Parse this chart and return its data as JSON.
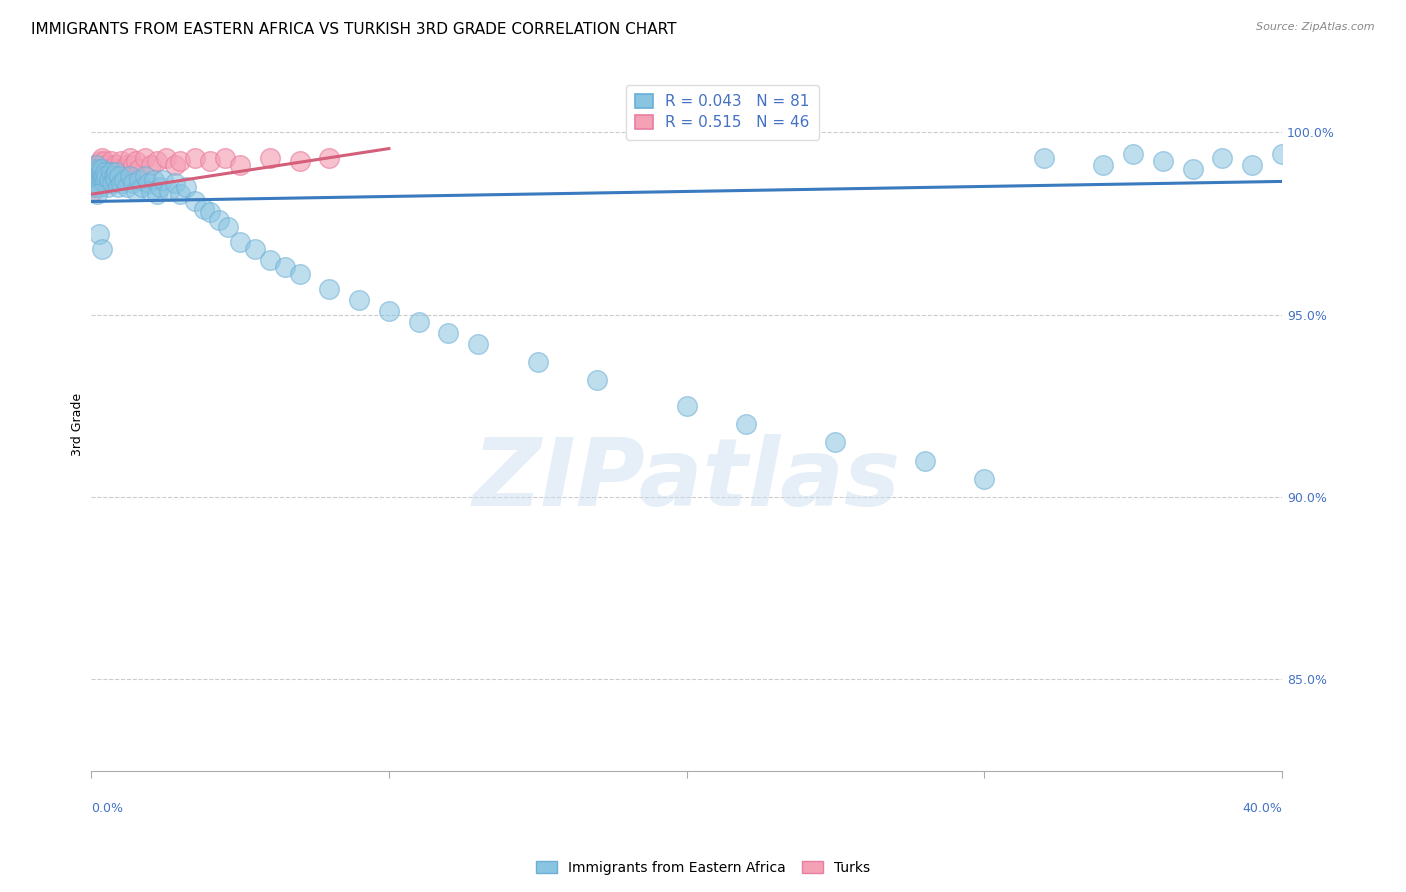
{
  "title": "IMMIGRANTS FROM EASTERN AFRICA VS TURKISH 3RD GRADE CORRELATION CHART",
  "source": "Source: ZipAtlas.com",
  "ylabel": "3rd Grade",
  "yticks": [
    100.0,
    95.0,
    90.0,
    85.0
  ],
  "ylim": [
    82.5,
    101.5
  ],
  "xlim": [
    0.0,
    40.0
  ],
  "legend_blue_r": "R = 0.043",
  "legend_blue_n": "N = 81",
  "legend_pink_r": "R = 0.515",
  "legend_pink_n": "N = 46",
  "blue_color": "#89c4e1",
  "pink_color": "#f4a0b5",
  "blue_scatter_edge": "#6baed6",
  "pink_scatter_edge": "#e87fa0",
  "blue_line_color": "#3a7abf",
  "pink_line_color": "#d45f7a",
  "watermark": "ZIPatlas",
  "blue_line_x": [
    0.0,
    40.0
  ],
  "blue_line_y": [
    98.1,
    98.65
  ],
  "pink_line_x": [
    0.0,
    10.0
  ],
  "pink_line_y": [
    98.3,
    99.55
  ],
  "blue_scatter_x": [
    0.05,
    0.08,
    0.1,
    0.12,
    0.15,
    0.17,
    0.2,
    0.22,
    0.25,
    0.28,
    0.3,
    0.33,
    0.35,
    0.38,
    0.4,
    0.43,
    0.45,
    0.48,
    0.5,
    0.55,
    0.6,
    0.65,
    0.7,
    0.75,
    0.8,
    0.85,
    0.9,
    0.95,
    1.0,
    1.1,
    1.2,
    1.3,
    1.4,
    1.5,
    1.6,
    1.7,
    1.8,
    1.9,
    2.0,
    2.1,
    2.2,
    2.3,
    2.4,
    2.6,
    2.8,
    3.0,
    3.2,
    3.5,
    3.8,
    4.0,
    4.3,
    4.6,
    5.0,
    5.5,
    6.0,
    6.5,
    7.0,
    8.0,
    9.0,
    10.0,
    11.0,
    12.0,
    13.0,
    15.0,
    17.0,
    20.0,
    22.0,
    25.0,
    28.0,
    30.0,
    32.0,
    34.0,
    35.0,
    36.0,
    37.0,
    38.0,
    39.0,
    40.0,
    0.18,
    0.27,
    0.38
  ],
  "blue_scatter_y": [
    98.8,
    99.0,
    98.5,
    98.7,
    98.9,
    99.1,
    98.6,
    98.8,
    99.0,
    98.7,
    98.5,
    98.9,
    98.7,
    99.0,
    98.8,
    98.6,
    98.9,
    98.7,
    98.8,
    98.5,
    98.7,
    98.9,
    98.6,
    98.8,
    98.7,
    98.9,
    98.5,
    98.8,
    98.6,
    98.7,
    98.5,
    98.8,
    98.6,
    98.4,
    98.7,
    98.5,
    98.8,
    98.6,
    98.4,
    98.7,
    98.3,
    98.5,
    98.7,
    98.4,
    98.6,
    98.3,
    98.5,
    98.1,
    97.9,
    97.8,
    97.6,
    97.4,
    97.0,
    96.8,
    96.5,
    96.3,
    96.1,
    95.7,
    95.4,
    95.1,
    94.8,
    94.5,
    94.2,
    93.7,
    93.2,
    92.5,
    92.0,
    91.5,
    91.0,
    90.5,
    99.3,
    99.1,
    99.4,
    99.2,
    99.0,
    99.3,
    99.1,
    99.4,
    98.3,
    97.2,
    96.8
  ],
  "pink_scatter_x": [
    0.05,
    0.08,
    0.1,
    0.12,
    0.15,
    0.18,
    0.2,
    0.22,
    0.25,
    0.28,
    0.3,
    0.33,
    0.35,
    0.38,
    0.4,
    0.43,
    0.45,
    0.48,
    0.5,
    0.55,
    0.6,
    0.65,
    0.7,
    0.75,
    0.8,
    0.9,
    1.0,
    1.1,
    1.2,
    1.3,
    1.4,
    1.5,
    1.6,
    1.8,
    2.0,
    2.2,
    2.5,
    2.8,
    3.0,
    3.5,
    4.0,
    4.5,
    5.0,
    6.0,
    7.0,
    8.0
  ],
  "pink_scatter_y": [
    98.4,
    98.6,
    98.5,
    98.8,
    99.0,
    98.7,
    98.9,
    99.1,
    98.8,
    99.0,
    99.2,
    98.9,
    99.1,
    99.3,
    99.0,
    99.2,
    98.8,
    99.0,
    98.9,
    99.1,
    99.0,
    99.2,
    99.0,
    98.9,
    99.1,
    99.0,
    99.2,
    99.0,
    99.1,
    99.3,
    99.1,
    99.2,
    99.0,
    99.3,
    99.1,
    99.2,
    99.3,
    99.1,
    99.2,
    99.3,
    99.2,
    99.3,
    99.1,
    99.3,
    99.2,
    99.3
  ],
  "grid_color": "#cccccc",
  "background_color": "#ffffff",
  "title_fontsize": 11,
  "axis_label_fontsize": 9,
  "tick_fontsize": 9,
  "legend_fontsize": 11
}
